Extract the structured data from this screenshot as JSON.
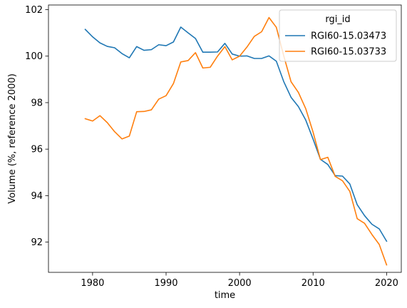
{
  "chart_data": {
    "type": "line",
    "title": "",
    "xlabel": "time",
    "ylabel": "Volume (%, reference 2000)",
    "xlim": [
      1974,
      2022
    ],
    "ylim": [
      90.7,
      102.2
    ],
    "xticks": [
      1980,
      1990,
      2000,
      2010,
      2020
    ],
    "yticks": [
      92,
      94,
      96,
      98,
      100,
      102
    ],
    "grid": false,
    "legend": {
      "title": "rgi_id",
      "placement": "top-right"
    },
    "x": [
      1979,
      1980,
      1981,
      1982,
      1983,
      1984,
      1985,
      1986,
      1987,
      1988,
      1989,
      1990,
      1991,
      1992,
      1993,
      1994,
      1995,
      1996,
      1997,
      1998,
      1999,
      2000,
      2001,
      2002,
      2003,
      2004,
      2005,
      2006,
      2007,
      2008,
      2009,
      2010,
      2011,
      2012,
      2013,
      2014,
      2015,
      2016,
      2017,
      2018,
      2019,
      2020
    ],
    "series": [
      {
        "name": "RGI60-15.03473",
        "color": "#1f77b4",
        "values": [
          101.15,
          100.83,
          100.57,
          100.42,
          100.36,
          100.11,
          99.93,
          100.41,
          100.25,
          100.28,
          100.49,
          100.45,
          100.61,
          101.25,
          101.0,
          100.76,
          100.17,
          100.17,
          100.18,
          100.55,
          100.09,
          100.0,
          100.01,
          99.9,
          99.9,
          100.01,
          99.78,
          98.91,
          98.23,
          97.83,
          97.25,
          96.43,
          95.56,
          95.34,
          94.86,
          94.84,
          94.5,
          93.61,
          93.14,
          92.77,
          92.57,
          92.04
        ]
      },
      {
        "name": "RGI60-15.03733",
        "color": "#ff7f0e",
        "values": [
          97.31,
          97.21,
          97.44,
          97.14,
          96.75,
          96.44,
          96.56,
          97.61,
          97.62,
          97.69,
          98.15,
          98.3,
          98.82,
          99.75,
          99.81,
          100.15,
          99.49,
          99.52,
          100.0,
          100.41,
          99.84,
          100.0,
          100.39,
          100.85,
          101.05,
          101.66,
          101.24,
          100.02,
          98.9,
          98.44,
          97.74,
          96.73,
          95.55,
          95.65,
          94.83,
          94.64,
          94.18,
          93.01,
          92.81,
          92.33,
          91.9,
          91.02
        ]
      }
    ]
  }
}
